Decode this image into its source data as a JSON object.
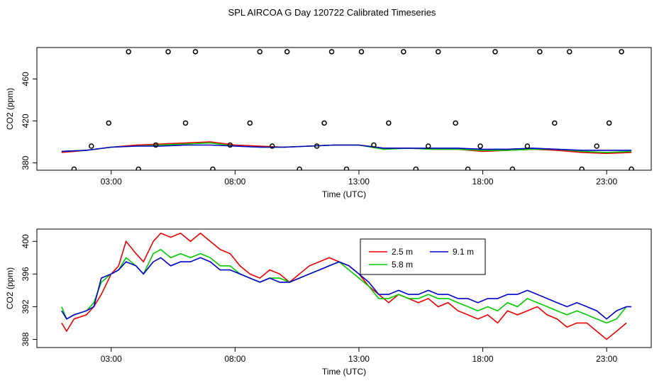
{
  "title": "SPL AIRCOA G  Day 120722  Calibrated Timeseries",
  "colors": {
    "s2_5": "#ee0000",
    "s5_8": "#00cc00",
    "s9_1": "#0000cc",
    "points": "#000000"
  },
  "chart_data": [
    {
      "type": "line",
      "ylabel": "CO2 (ppm)",
      "xlabel": "Time (UTC)",
      "xlim": [
        0,
        24.8
      ],
      "ylim": [
        373,
        490
      ],
      "x_ticks": [
        3,
        8,
        13,
        18,
        23
      ],
      "x_tick_labels": [
        "03:00",
        "08:00",
        "13:00",
        "18:00",
        "23:00"
      ],
      "y_ticks": [
        380,
        420,
        460
      ],
      "y_tick_labels": [
        "380",
        "420",
        "460"
      ],
      "series": [
        {
          "name": "2.5 m",
          "color": "#ee0000",
          "x": [
            1.0,
            2.0,
            3.0,
            4.0,
            5.0,
            6.0,
            7.0,
            8.0,
            9.0,
            10.0,
            11.0,
            12.0,
            13.0,
            14.0,
            15.0,
            16.0,
            17.0,
            18.0,
            19.0,
            20.0,
            21.0,
            22.0,
            23.0,
            24.0
          ],
          "y": [
            390,
            392,
            395,
            397,
            398,
            399,
            400,
            397,
            396,
            395,
            396,
            397,
            397,
            394,
            394,
            393,
            393,
            391,
            392,
            393,
            392,
            390,
            389,
            390
          ]
        },
        {
          "name": "5.8 m",
          "color": "#00cc00",
          "x": [
            1.0,
            2.0,
            3.0,
            4.0,
            5.0,
            6.0,
            7.0,
            8.0,
            9.0,
            10.0,
            11.0,
            12.0,
            13.0,
            14.0,
            15.0,
            16.0,
            17.0,
            18.0,
            19.0,
            20.0,
            21.0,
            22.0,
            23.0,
            24.0
          ],
          "y": [
            391,
            392,
            395,
            396,
            397,
            398,
            399,
            396,
            395,
            395,
            396,
            397,
            397,
            393,
            394,
            393,
            393,
            392,
            392,
            393,
            393,
            391,
            390,
            391
          ]
        },
        {
          "name": "9.1 m",
          "color": "#0000cc",
          "x": [
            1.0,
            2.0,
            3.0,
            4.0,
            5.0,
            6.0,
            7.0,
            8.0,
            9.0,
            10.0,
            11.0,
            12.0,
            13.0,
            14.0,
            15.0,
            16.0,
            17.0,
            18.0,
            19.0,
            20.0,
            21.0,
            22.0,
            23.0,
            24.0
          ],
          "y": [
            391,
            392,
            395,
            396,
            396,
            397,
            397,
            396,
            395,
            395,
            396,
            397,
            397,
            394,
            394,
            394,
            394,
            393,
            393,
            394,
            393,
            392,
            392,
            392
          ]
        }
      ],
      "calibration_points": {
        "x": [
          1.5,
          2.2,
          2.9,
          3.7,
          4.1,
          4.8,
          5.3,
          6.0,
          6.4,
          7.1,
          7.8,
          8.6,
          9.0,
          9.5,
          10.1,
          10.6,
          11.3,
          11.6,
          11.9,
          12.5,
          13.1,
          13.6,
          14.2,
          14.8,
          15.3,
          15.8,
          16.2,
          16.9,
          17.4,
          17.9,
          18.5,
          19.2,
          19.8,
          20.3,
          20.9,
          21.5,
          22.0,
          22.6,
          23.1,
          23.6,
          24.0
        ],
        "y": [
          374,
          396,
          418,
          486,
          374,
          397,
          486,
          418,
          486,
          374,
          397,
          418,
          486,
          396,
          486,
          374,
          396,
          418,
          486,
          374,
          486,
          397,
          418,
          486,
          374,
          396,
          486,
          418,
          374,
          396,
          486,
          374,
          396,
          486,
          418,
          486,
          374,
          396,
          418,
          486,
          374
        ]
      }
    },
    {
      "type": "line",
      "ylabel": "CO2 (ppm)",
      "xlabel": "Time (UTC)",
      "xlim": [
        0,
        24.8
      ],
      "ylim": [
        387,
        401.5
      ],
      "x_ticks": [
        3,
        8,
        13,
        18,
        23
      ],
      "x_tick_labels": [
        "03:00",
        "08:00",
        "13:00",
        "18:00",
        "23:00"
      ],
      "y_ticks": [
        388,
        392,
        396,
        400
      ],
      "y_tick_labels": [
        "388",
        "392",
        "396",
        "400"
      ],
      "legend": {
        "placement": "top-center"
      },
      "series": [
        {
          "name": "2.5 m",
          "color": "#ee0000",
          "x": [
            1.0,
            1.2,
            1.5,
            2.0,
            2.3,
            2.6,
            3.0,
            3.3,
            3.6,
            4.0,
            4.3,
            4.7,
            5.0,
            5.4,
            5.8,
            6.2,
            6.6,
            7.0,
            7.4,
            7.8,
            8.2,
            8.6,
            9.0,
            9.4,
            9.8,
            10.2,
            10.6,
            11.0,
            11.4,
            11.8,
            12.2,
            12.6,
            13.0,
            13.4,
            13.8,
            14.2,
            14.6,
            15.0,
            15.4,
            15.8,
            16.2,
            16.6,
            17.0,
            17.4,
            17.8,
            18.2,
            18.6,
            19.0,
            19.4,
            19.8,
            20.2,
            20.6,
            21.0,
            21.4,
            21.8,
            22.2,
            22.6,
            23.0,
            23.4,
            23.8
          ],
          "y": [
            390.0,
            389.0,
            390.5,
            391.0,
            392.0,
            393.5,
            396.0,
            397.0,
            400.0,
            398.5,
            397.5,
            400.0,
            401.0,
            400.5,
            401.0,
            400.0,
            401.0,
            400.0,
            399.0,
            398.5,
            397.0,
            396.0,
            395.5,
            396.5,
            396.0,
            395.0,
            396.0,
            397.0,
            397.5,
            398.0,
            397.5,
            397.0,
            396.0,
            394.5,
            393.5,
            392.5,
            393.5,
            393.0,
            392.5,
            393.0,
            392.0,
            392.5,
            391.5,
            391.0,
            390.5,
            391.0,
            390.0,
            391.5,
            391.0,
            391.5,
            392.0,
            391.0,
            390.5,
            389.5,
            390.0,
            390.0,
            389.0,
            388.0,
            389.0,
            390.0
          ]
        },
        {
          "name": "5.8 m",
          "color": "#00cc00",
          "x": [
            1.0,
            1.2,
            1.5,
            2.0,
            2.3,
            2.6,
            3.0,
            3.3,
            3.6,
            4.0,
            4.3,
            4.7,
            5.0,
            5.4,
            5.8,
            6.2,
            6.6,
            7.0,
            7.4,
            7.8,
            8.2,
            8.6,
            9.0,
            9.4,
            9.8,
            10.2,
            10.6,
            11.0,
            11.4,
            11.8,
            12.2,
            12.6,
            13.0,
            13.4,
            13.8,
            14.2,
            14.6,
            15.0,
            15.4,
            15.8,
            16.2,
            16.6,
            17.0,
            17.4,
            17.8,
            18.2,
            18.6,
            19.0,
            19.4,
            19.8,
            20.2,
            20.6,
            21.0,
            21.4,
            21.8,
            22.2,
            22.6,
            23.0,
            23.4,
            23.8
          ],
          "y": [
            392.0,
            390.5,
            391.0,
            391.5,
            392.5,
            395.0,
            396.0,
            396.5,
            398.0,
            397.0,
            396.0,
            398.5,
            399.0,
            398.0,
            398.5,
            398.0,
            398.5,
            398.0,
            397.0,
            397.0,
            396.0,
            395.5,
            395.0,
            395.5,
            395.5,
            395.0,
            395.5,
            396.0,
            396.5,
            397.0,
            397.5,
            396.5,
            395.5,
            394.5,
            393.0,
            393.0,
            393.5,
            393.0,
            393.0,
            393.5,
            393.0,
            393.0,
            392.5,
            392.0,
            391.5,
            392.0,
            391.5,
            392.5,
            392.0,
            393.0,
            392.5,
            392.0,
            391.5,
            391.0,
            391.5,
            391.0,
            390.5,
            390.0,
            390.5,
            392.0
          ]
        },
        {
          "name": "9.1 m",
          "color": "#0000cc",
          "x": [
            1.0,
            1.2,
            1.5,
            2.0,
            2.3,
            2.6,
            3.0,
            3.3,
            3.6,
            4.0,
            4.3,
            4.7,
            5.0,
            5.4,
            5.8,
            6.2,
            6.6,
            7.0,
            7.4,
            7.8,
            8.2,
            8.6,
            9.0,
            9.4,
            9.8,
            10.2,
            10.6,
            11.0,
            11.4,
            11.8,
            12.2,
            12.6,
            13.0,
            13.4,
            13.8,
            14.2,
            14.6,
            15.0,
            15.4,
            15.8,
            16.2,
            16.6,
            17.0,
            17.4,
            17.8,
            18.2,
            18.6,
            19.0,
            19.4,
            19.8,
            20.2,
            20.6,
            21.0,
            21.4,
            21.8,
            22.2,
            22.6,
            23.0,
            23.4,
            23.8,
            24.0
          ],
          "y": [
            391.5,
            390.5,
            391.0,
            391.5,
            392.0,
            395.5,
            396.0,
            396.5,
            397.5,
            397.0,
            396.0,
            397.5,
            398.0,
            397.0,
            397.5,
            397.5,
            398.0,
            397.5,
            396.5,
            396.5,
            396.0,
            395.5,
            395.0,
            395.5,
            395.0,
            395.0,
            395.5,
            396.0,
            396.5,
            397.0,
            397.5,
            397.0,
            396.0,
            395.0,
            393.5,
            393.5,
            394.0,
            393.5,
            393.5,
            394.0,
            393.5,
            393.5,
            393.0,
            393.0,
            392.5,
            393.0,
            393.0,
            393.5,
            393.5,
            394.0,
            393.5,
            393.0,
            392.5,
            392.0,
            392.5,
            392.0,
            391.5,
            390.5,
            391.5,
            392.0,
            392.0
          ]
        }
      ]
    }
  ]
}
